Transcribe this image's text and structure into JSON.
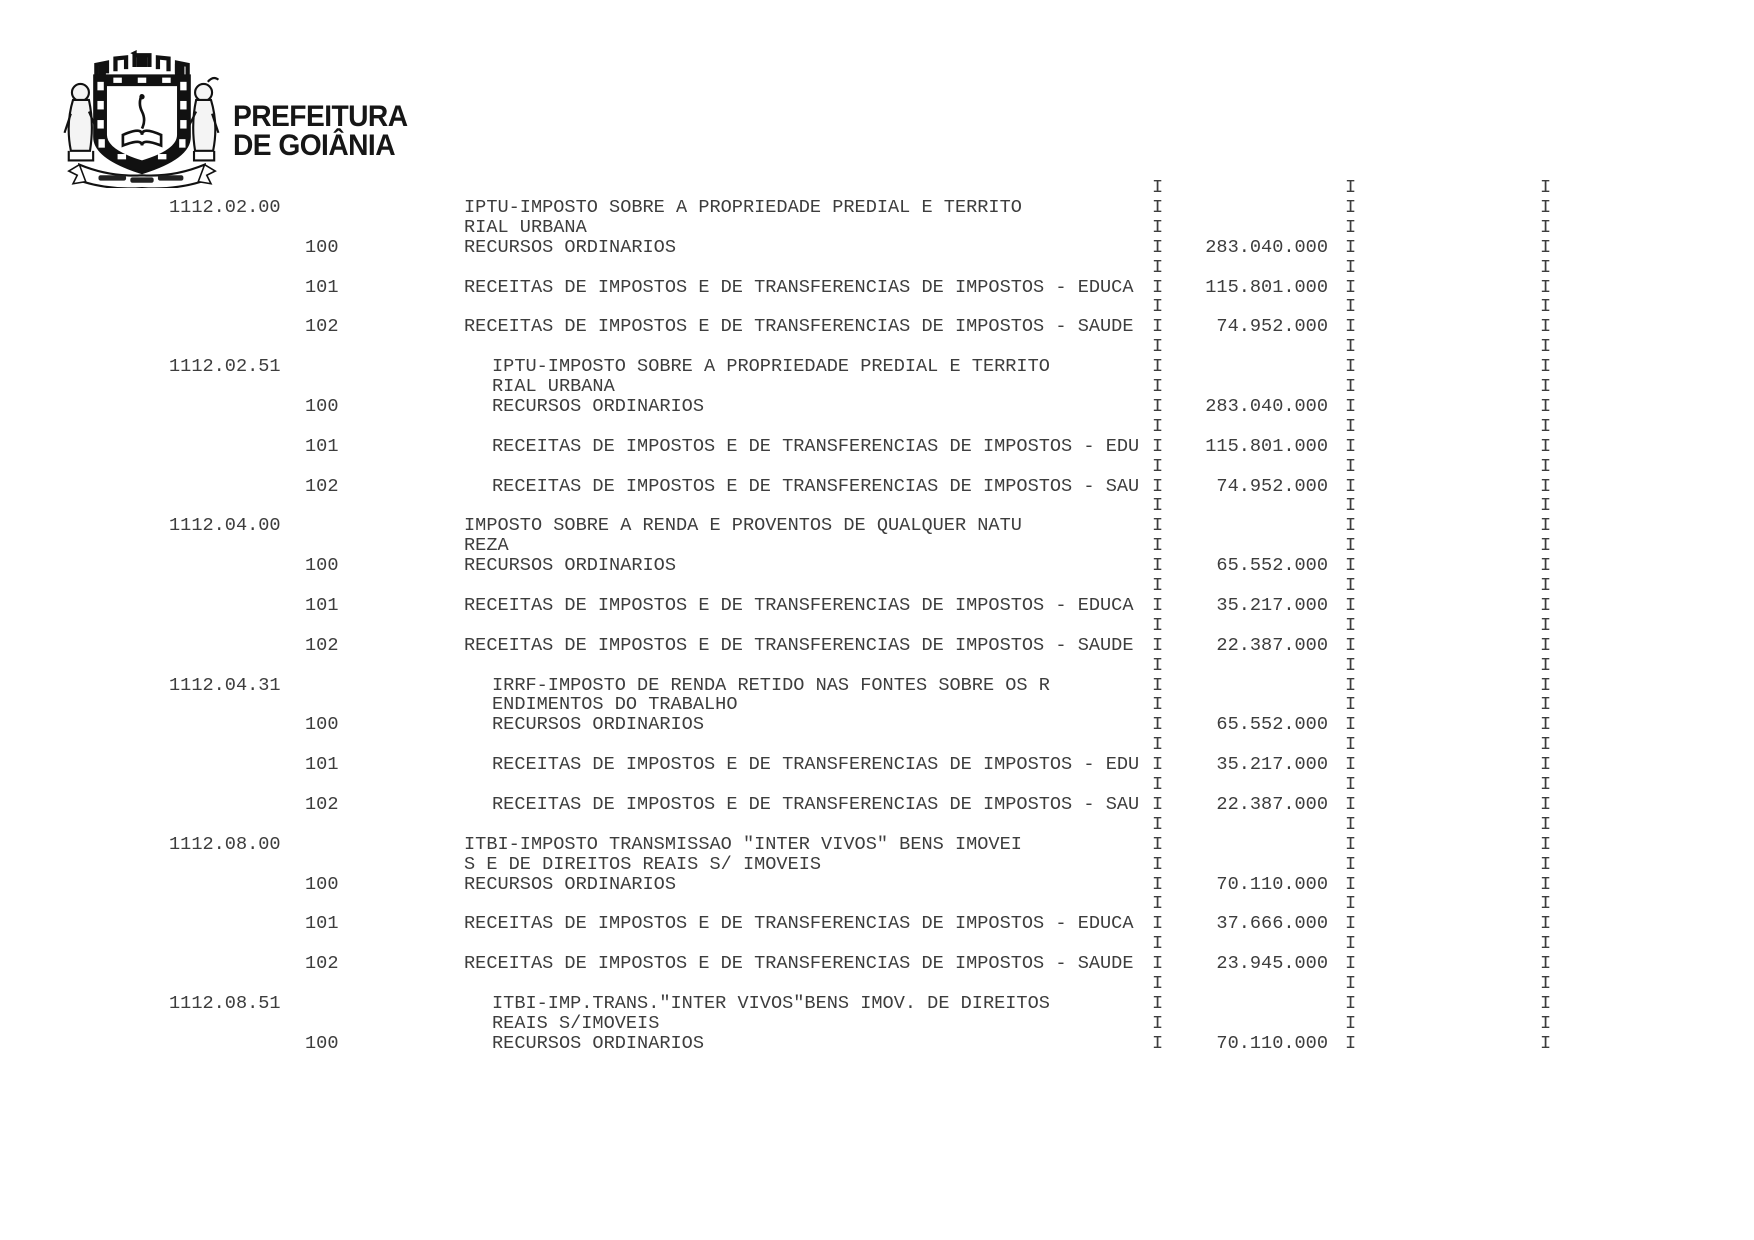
{
  "page": {
    "background_color": "#ffffff",
    "text_color": "#3d3d3d",
    "logo_ink_color": "#111111"
  },
  "header": {
    "logo": "goiania-coat-of-arms",
    "org_line1": "PREFEITURA",
    "org_line2": "DE GOIÂNIA"
  },
  "report": {
    "separator_glyph": "I",
    "blocks": [
      {
        "code": "1112.02.00",
        "indent": false,
        "description_lines": [
          "IPTU-IMPOSTO SOBRE A PROPRIEDADE PREDIAL E TERRITO",
          "RIAL URBANA"
        ],
        "entries": [
          {
            "code": "100",
            "description": "RECURSOS ORDINARIOS",
            "value": "283.040.000"
          },
          {
            "code": "101",
            "description": "RECEITAS DE IMPOSTOS E DE TRANSFERENCIAS DE IMPOSTOS - EDUCA",
            "value": "115.801.000"
          },
          {
            "code": "102",
            "description": "RECEITAS DE IMPOSTOS E DE TRANSFERENCIAS DE IMPOSTOS - SAUDE",
            "value": "74.952.000"
          }
        ]
      },
      {
        "code": "1112.02.51",
        "indent": true,
        "description_lines": [
          "IPTU-IMPOSTO SOBRE A PROPRIEDADE PREDIAL E TERRITO",
          "RIAL URBANA"
        ],
        "entries": [
          {
            "code": "100",
            "description": "RECURSOS ORDINARIOS",
            "value": "283.040.000"
          },
          {
            "code": "101",
            "description": "RECEITAS DE IMPOSTOS E DE TRANSFERENCIAS DE IMPOSTOS - EDU",
            "value": "115.801.000"
          },
          {
            "code": "102",
            "description": "RECEITAS DE IMPOSTOS E DE TRANSFERENCIAS DE IMPOSTOS - SAU",
            "value": "74.952.000"
          }
        ]
      },
      {
        "code": "1112.04.00",
        "indent": false,
        "description_lines": [
          "IMPOSTO SOBRE A RENDA E PROVENTOS DE QUALQUER NATU",
          "REZA"
        ],
        "entries": [
          {
            "code": "100",
            "description": "RECURSOS ORDINARIOS",
            "value": "65.552.000"
          },
          {
            "code": "101",
            "description": "RECEITAS DE IMPOSTOS E DE TRANSFERENCIAS DE IMPOSTOS - EDUCA",
            "value": "35.217.000"
          },
          {
            "code": "102",
            "description": "RECEITAS DE IMPOSTOS E DE TRANSFERENCIAS DE IMPOSTOS - SAUDE",
            "value": "22.387.000"
          }
        ]
      },
      {
        "code": "1112.04.31",
        "indent": true,
        "description_lines": [
          "IRRF-IMPOSTO DE RENDA RETIDO NAS FONTES SOBRE OS R",
          "ENDIMENTOS DO TRABALHO"
        ],
        "entries": [
          {
            "code": "100",
            "description": "RECURSOS ORDINARIOS",
            "value": "65.552.000"
          },
          {
            "code": "101",
            "description": "RECEITAS DE IMPOSTOS E DE TRANSFERENCIAS DE IMPOSTOS - EDU",
            "value": "35.217.000"
          },
          {
            "code": "102",
            "description": "RECEITAS DE IMPOSTOS E DE TRANSFERENCIAS DE IMPOSTOS - SAU",
            "value": "22.387.000"
          }
        ]
      },
      {
        "code": "1112.08.00",
        "indent": false,
        "description_lines": [
          "ITBI-IMPOSTO TRANSMISSAO \"INTER VIVOS\" BENS IMOVEI",
          "S E DE DIREITOS REAIS S/ IMOVEIS"
        ],
        "entries": [
          {
            "code": "100",
            "description": "RECURSOS ORDINARIOS",
            "value": "70.110.000"
          },
          {
            "code": "101",
            "description": "RECEITAS DE IMPOSTOS E DE TRANSFERENCIAS DE IMPOSTOS - EDUCA",
            "value": "37.666.000"
          },
          {
            "code": "102",
            "description": "RECEITAS DE IMPOSTOS E DE TRANSFERENCIAS DE IMPOSTOS - SAUDE",
            "value": "23.945.000"
          }
        ]
      },
      {
        "code": "1112.08.51",
        "indent": true,
        "description_lines": [
          "ITBI-IMP.TRANS.\"INTER VIVOS\"BENS IMOV. DE DIREITOS",
          "REAIS S/IMOVEIS"
        ],
        "entries": [
          {
            "code": "100",
            "description": "RECURSOS ORDINARIOS",
            "value": "70.110.000"
          }
        ]
      }
    ]
  }
}
